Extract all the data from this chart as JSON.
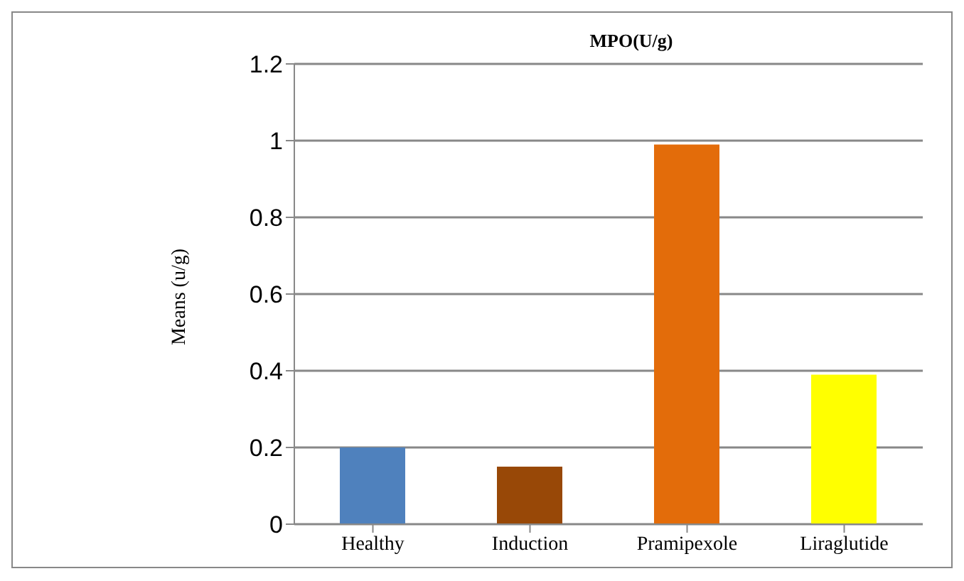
{
  "chart_data": {
    "type": "bar",
    "title": "MPO(U/g)",
    "ylabel": "Means (u/g)",
    "categories": [
      "Healthy",
      "Induction",
      "Pramipexole",
      "Liraglutide"
    ],
    "values": [
      0.2,
      0.15,
      0.99,
      0.39
    ],
    "colors": [
      "#4f81bd",
      "#984807",
      "#e36c0a",
      "#ffff00"
    ],
    "ylim": [
      0,
      1.2
    ],
    "yticks": [
      0,
      0.2,
      0.4,
      0.6,
      0.8,
      1,
      1.2
    ],
    "grid": "y"
  }
}
